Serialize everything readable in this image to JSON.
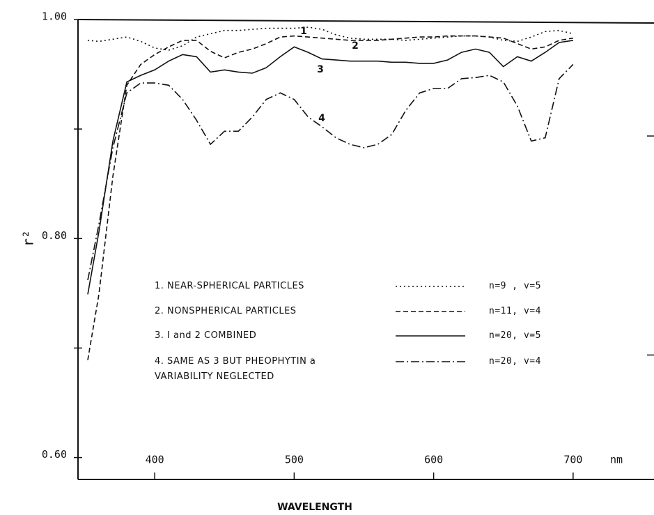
{
  "chart_data": {
    "type": "line",
    "x_label": "WAVELENGTH",
    "x_unit": "nm",
    "y_label": "r²",
    "xlim": [
      345,
      758
    ],
    "ylim": [
      0.58,
      1.0
    ],
    "xticks": [
      400,
      500,
      600,
      700
    ],
    "yticks": [
      {
        "value": 0.6,
        "label": "0.60"
      },
      {
        "value": 0.8,
        "label": "0.80"
      },
      {
        "value": 1.0,
        "label": "1.00"
      }
    ],
    "yminor": [
      0.7,
      0.9
    ],
    "grid": false,
    "x": [
      352,
      360,
      370,
      380,
      390,
      400,
      410,
      420,
      430,
      440,
      450,
      460,
      470,
      480,
      490,
      500,
      510,
      520,
      530,
      540,
      550,
      560,
      570,
      580,
      590,
      600,
      610,
      620,
      630,
      640,
      650,
      660,
      670,
      680,
      690,
      700
    ],
    "series": [
      {
        "name": "1. NEAR-SPHERICAL PARTICLES",
        "stats": "n=9 , v=5",
        "label": "1",
        "color": "#111",
        "dash": "2,4",
        "values": [
          0.981,
          0.98,
          0.982,
          0.984,
          0.98,
          0.974,
          0.972,
          0.976,
          0.984,
          0.987,
          0.99,
          0.99,
          0.991,
          0.992,
          0.992,
          0.992,
          0.993,
          0.991,
          0.986,
          0.983,
          0.982,
          0.982,
          0.982,
          0.981,
          0.982,
          0.983,
          0.984,
          0.985,
          0.985,
          0.984,
          0.981,
          0.98,
          0.984,
          0.989,
          0.99,
          0.987
        ]
      },
      {
        "name": "2. NONSPHERICAL PARTICLES",
        "stats": "n=11, v=4",
        "label": "2",
        "color": "#111",
        "dash": "7,4",
        "values": [
          0.689,
          0.749,
          0.857,
          0.94,
          0.959,
          0.968,
          0.975,
          0.981,
          0.981,
          0.971,
          0.965,
          0.97,
          0.973,
          0.978,
          0.984,
          0.985,
          0.984,
          0.983,
          0.982,
          0.981,
          0.981,
          0.981,
          0.982,
          0.983,
          0.984,
          0.984,
          0.985,
          0.985,
          0.985,
          0.984,
          0.983,
          0.978,
          0.973,
          0.975,
          0.981,
          0.983
        ]
      },
      {
        "name": "3. I and 2 COMBINED",
        "stats": "n=20, v=5",
        "label": "3",
        "color": "#111",
        "dash": "",
        "values": [
          0.749,
          0.806,
          0.889,
          0.943,
          0.949,
          0.954,
          0.962,
          0.968,
          0.966,
          0.952,
          0.954,
          0.952,
          0.951,
          0.956,
          0.966,
          0.975,
          0.97,
          0.964,
          0.963,
          0.962,
          0.962,
          0.962,
          0.961,
          0.961,
          0.96,
          0.96,
          0.963,
          0.97,
          0.973,
          0.97,
          0.957,
          0.966,
          0.962,
          0.97,
          0.979,
          0.981
        ]
      },
      {
        "name": "4. SAME AS 3 BUT PHEOPHYTIN a\nVARIABILITY NEGLECTED",
        "stats": "n=20, v=4",
        "label": "4",
        "color": "#111",
        "dash": "12,4,2,4",
        "values": [
          0.762,
          0.813,
          0.883,
          0.933,
          0.942,
          0.942,
          0.94,
          0.927,
          0.908,
          0.886,
          0.898,
          0.898,
          0.911,
          0.927,
          0.933,
          0.927,
          0.911,
          0.902,
          0.892,
          0.886,
          0.883,
          0.886,
          0.895,
          0.917,
          0.933,
          0.937,
          0.937,
          0.946,
          0.947,
          0.949,
          0.943,
          0.921,
          0.889,
          0.892,
          0.946,
          0.959
        ]
      }
    ]
  }
}
